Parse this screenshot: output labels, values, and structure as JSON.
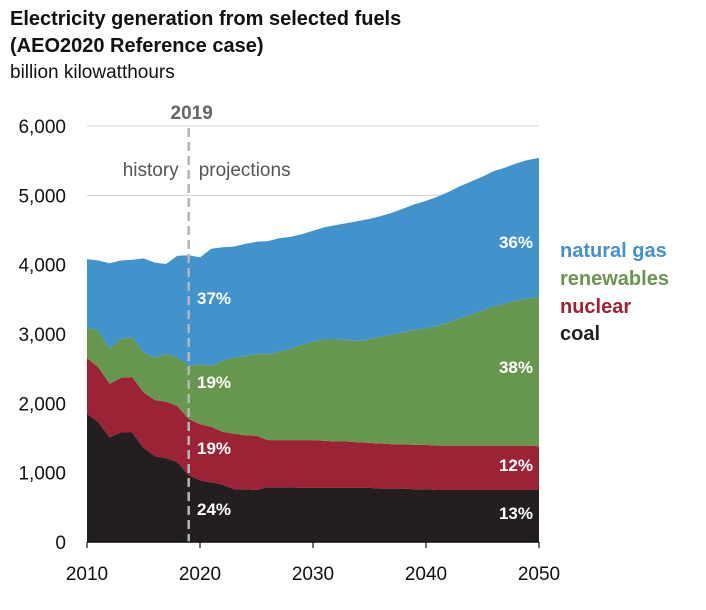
{
  "title_line1": "Electricity generation from selected fuels",
  "title_line2": "(AEO2020 Reference case)",
  "subtitle": "billion kilowatthours",
  "chart_data": {
    "type": "area",
    "stacked": true,
    "ylabel": "billion kilowatthours",
    "ylim": [
      0,
      6000
    ],
    "yticks": [
      "0",
      "1,000",
      "2,000",
      "3,000",
      "4,000",
      "5,000",
      "6,000"
    ],
    "ytick_values": [
      0,
      1000,
      2000,
      3000,
      4000,
      5000,
      6000
    ],
    "xlim": [
      2010,
      2050
    ],
    "xticks": [
      "2010",
      "2020",
      "2030",
      "2040",
      "2050"
    ],
    "xtick_values": [
      2010,
      2020,
      2030,
      2040,
      2050
    ],
    "x": [
      2010,
      2011,
      2012,
      2013,
      2014,
      2015,
      2016,
      2017,
      2018,
      2019,
      2020,
      2021,
      2022,
      2023,
      2024,
      2025,
      2026,
      2027,
      2028,
      2029,
      2030,
      2031,
      2032,
      2033,
      2034,
      2035,
      2036,
      2037,
      2038,
      2039,
      2040,
      2041,
      2042,
      2043,
      2044,
      2045,
      2046,
      2047,
      2048,
      2049,
      2050
    ],
    "divider_year": 2019,
    "divider_label": "2019",
    "history_label": "history",
    "projections_label": "projections",
    "series": [
      {
        "name": "coal",
        "color": "#231f20",
        "values": [
          1850,
          1730,
          1510,
          1580,
          1580,
          1360,
          1240,
          1210,
          1150,
          965,
          890,
          860,
          830,
          760,
          760,
          750,
          790,
          790,
          790,
          780,
          780,
          780,
          780,
          780,
          780,
          780,
          770,
          770,
          770,
          760,
          760,
          750,
          750,
          750,
          750,
          750,
          750,
          750,
          750,
          750,
          750
        ]
      },
      {
        "name": "nuclear",
        "color": "#9b2335",
        "values": [
          805,
          790,
          770,
          790,
          800,
          800,
          810,
          810,
          810,
          810,
          810,
          800,
          760,
          800,
          780,
          780,
          680,
          680,
          680,
          690,
          690,
          680,
          670,
          670,
          660,
          650,
          650,
          640,
          640,
          640,
          640,
          640,
          640,
          640,
          640,
          640,
          640,
          640,
          640,
          640,
          630
        ]
      },
      {
        "name": "renewables",
        "color": "#67974e",
        "values": [
          435,
          530,
          510,
          560,
          570,
          570,
          610,
          690,
          700,
          770,
          860,
          880,
          1020,
          1100,
          1140,
          1180,
          1240,
          1270,
          1320,
          1370,
          1420,
          1460,
          1470,
          1460,
          1460,
          1490,
          1540,
          1580,
          1620,
          1660,
          1680,
          1730,
          1770,
          1840,
          1890,
          1950,
          2010,
          2050,
          2090,
          2120,
          2160
        ]
      },
      {
        "name": "natural gas",
        "color": "#4292cc",
        "values": [
          990,
          1010,
          1230,
          1130,
          1120,
          1360,
          1370,
          1300,
          1470,
          1590,
          1545,
          1690,
          1640,
          1600,
          1620,
          1620,
          1630,
          1640,
          1610,
          1600,
          1600,
          1620,
          1650,
          1690,
          1730,
          1740,
          1740,
          1760,
          1780,
          1810,
          1840,
          1860,
          1890,
          1900,
          1920,
          1930,
          1950,
          1960,
          1980,
          2000,
          2000
        ]
      }
    ],
    "annotations": {
      "coal": {
        "left": "24%",
        "right": "13%"
      },
      "nuclear": {
        "left": "19%",
        "right": "12%"
      },
      "renewables": {
        "left": "19%",
        "right": "38%"
      },
      "natural_gas": {
        "left": "37%",
        "right": "36%"
      }
    },
    "legend": [
      "natural gas",
      "renewables",
      "nuclear",
      "coal"
    ],
    "legend_placement": "right",
    "grid": "horizontal"
  }
}
